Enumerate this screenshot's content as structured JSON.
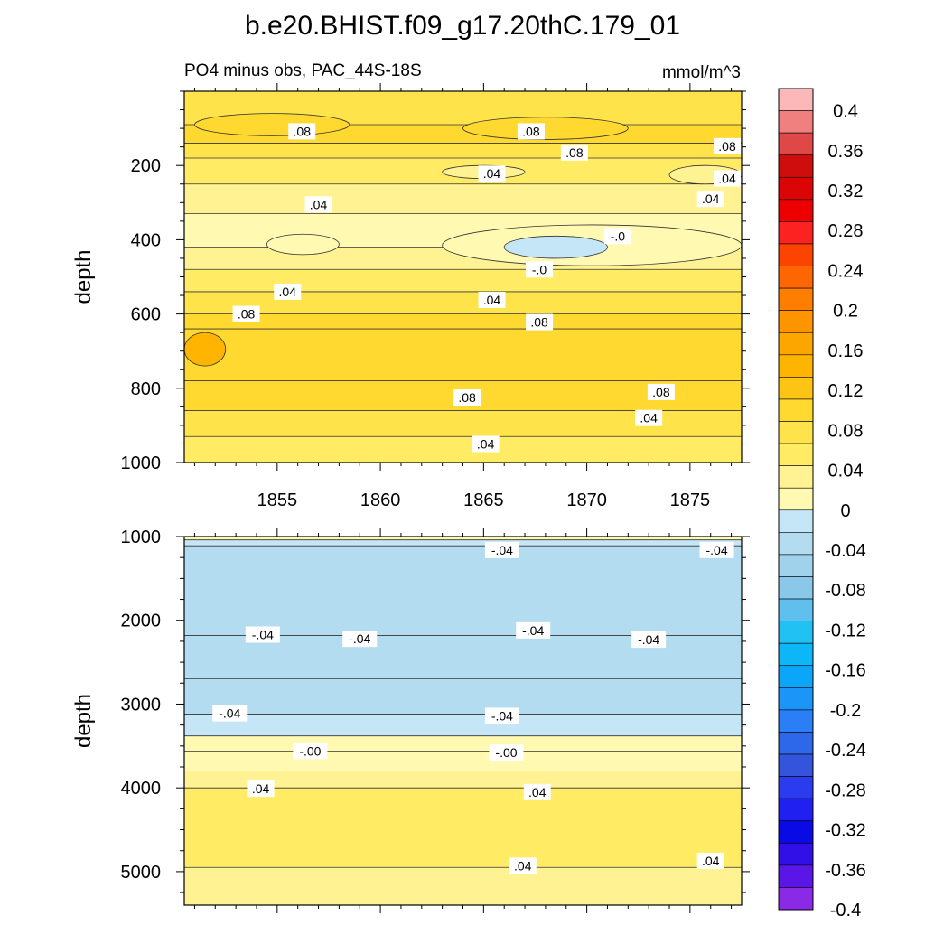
{
  "title": "b.e20.BHIST.f09_g17.20thC.179_01",
  "subtitle_left": "PO4 minus obs, PAC_44S-18S",
  "units": "mmol/m^3",
  "chart_data": [
    {
      "type": "heatmap",
      "panel": "upper",
      "ylabel": "depth",
      "y_reversed": true,
      "xlim": [
        1850.5,
        1877.5
      ],
      "ylim": [
        0,
        1000
      ],
      "x_ticks": [
        "1855",
        "1860",
        "1865",
        "1870",
        "1875"
      ],
      "y_ticks": [
        "200",
        "400",
        "600",
        "800",
        "1000"
      ],
      "bands": [
        {
          "top": 0,
          "value": 0.06
        },
        {
          "top": 90,
          "value": 0.08
        },
        {
          "top": 140,
          "value": 0.06
        },
        {
          "top": 180,
          "value": 0.04
        },
        {
          "top": 250,
          "value": 0.02
        },
        {
          "top": 330,
          "value": 0.01
        },
        {
          "top": 420,
          "value": 0.02
        },
        {
          "top": 480,
          "value": 0.04
        },
        {
          "top": 540,
          "value": 0.06
        },
        {
          "top": 600,
          "value": 0.08
        },
        {
          "top": 640,
          "value": 0.1
        },
        {
          "top": 780,
          "value": 0.08
        },
        {
          "top": 860,
          "value": 0.06
        },
        {
          "top": 930,
          "value": 0.04
        }
      ],
      "patches": [
        {
          "x": [
            1851,
            1858.5
          ],
          "y": [
            60,
            120
          ],
          "value": 0.1
        },
        {
          "x": [
            1864,
            1872
          ],
          "y": [
            70,
            130
          ],
          "value": 0.1
        },
        {
          "x": [
            1863,
            1867
          ],
          "y": [
            200,
            235
          ],
          "value": 0.02
        },
        {
          "x": [
            1874,
            1877.5
          ],
          "y": [
            200,
            250
          ],
          "value": 0.02
        },
        {
          "x": [
            1854.5,
            1858
          ],
          "y": [
            385,
            440
          ],
          "value": -0.01
        },
        {
          "x": [
            1863,
            1877.5
          ],
          "y": [
            360,
            470
          ],
          "value": -0.01
        },
        {
          "x": [
            1866,
            1871
          ],
          "y": [
            390,
            450
          ],
          "value": -0.03
        },
        {
          "x": [
            1850.5,
            1852.5
          ],
          "y": [
            650,
            740
          ],
          "value": 0.13
        }
      ],
      "labels": [
        {
          "text": ".08",
          "x": 1856.2,
          "y": 108
        },
        {
          "text": ".08",
          "x": 1867.3,
          "y": 108
        },
        {
          "text": ".08",
          "x": 1869.4,
          "y": 165
        },
        {
          "text": ".08",
          "x": 1876.8,
          "y": 148
        },
        {
          "text": ".04",
          "x": 1865.4,
          "y": 222
        },
        {
          "text": ".04",
          "x": 1876.8,
          "y": 235
        },
        {
          "text": ".04",
          "x": 1857.0,
          "y": 305
        },
        {
          "text": ".04",
          "x": 1876.0,
          "y": 290
        },
        {
          "text": "-.0",
          "x": 1871.5,
          "y": 390
        },
        {
          "text": "-.0",
          "x": 1867.7,
          "y": 480
        },
        {
          "text": ".04",
          "x": 1855.5,
          "y": 540
        },
        {
          "text": ".04",
          "x": 1865.4,
          "y": 562
        },
        {
          "text": ".08",
          "x": 1853.5,
          "y": 600
        },
        {
          "text": ".08",
          "x": 1867.7,
          "y": 622
        },
        {
          "text": ".08",
          "x": 1864.2,
          "y": 825
        },
        {
          "text": ".08",
          "x": 1873.6,
          "y": 810
        },
        {
          "text": ".04",
          "x": 1873.0,
          "y": 880
        },
        {
          "text": ".04",
          "x": 1865.1,
          "y": 950
        }
      ]
    },
    {
      "type": "heatmap",
      "panel": "lower",
      "ylabel": "depth",
      "y_reversed": true,
      "xlim": [
        1850.5,
        1877.5
      ],
      "ylim": [
        1000,
        5400
      ],
      "y_ticks": [
        "1000",
        "2000",
        "3000",
        "4000",
        "5000"
      ],
      "bands": [
        {
          "top": 1000,
          "value": 0.01
        },
        {
          "top": 1040,
          "value": -0.03
        },
        {
          "top": 1110,
          "value": -0.05
        },
        {
          "top": 2180,
          "value": -0.05
        },
        {
          "top": 2700,
          "value": -0.05
        },
        {
          "top": 3120,
          "value": -0.03
        },
        {
          "top": 3380,
          "value": -0.01
        },
        {
          "top": 3560,
          "value": 0.01
        },
        {
          "top": 3800,
          "value": 0.03
        },
        {
          "top": 4000,
          "value": 0.05
        },
        {
          "top": 4950,
          "value": 0.03
        }
      ],
      "patches": [],
      "labels": [
        {
          "text": "-.04",
          "x": 1865.9,
          "y": 1160
        },
        {
          "text": "-.04",
          "x": 1876.3,
          "y": 1160
        },
        {
          "text": "-.04",
          "x": 1854.3,
          "y": 2170
        },
        {
          "text": "-.04",
          "x": 1859.0,
          "y": 2220
        },
        {
          "text": "-.04",
          "x": 1867.4,
          "y": 2120
        },
        {
          "text": "-.04",
          "x": 1873.0,
          "y": 2230
        },
        {
          "text": "-.04",
          "x": 1852.7,
          "y": 3110
        },
        {
          "text": "-.04",
          "x": 1865.9,
          "y": 3140
        },
        {
          "text": "-.00",
          "x": 1856.6,
          "y": 3560
        },
        {
          "text": "-.00",
          "x": 1866.1,
          "y": 3580
        },
        {
          "text": ".04",
          "x": 1854.2,
          "y": 4010
        },
        {
          "text": ".04",
          "x": 1867.6,
          "y": 4050
        },
        {
          "text": ".04",
          "x": 1866.9,
          "y": 4930
        },
        {
          "text": ".04",
          "x": 1876.0,
          "y": 4870
        }
      ]
    }
  ],
  "colorbar": {
    "tick_labels": [
      "0.4",
      "0.36",
      "0.32",
      "0.28",
      "0.24",
      "0.2",
      "0.16",
      "0.12",
      "0.08",
      "0.04",
      "0",
      "-0.04",
      "-0.08",
      "-0.12",
      "-0.16",
      "-0.2",
      "-0.24",
      "-0.28",
      "-0.32",
      "-0.36",
      "-0.4"
    ],
    "colors": [
      "#fcb8b8",
      "#f07f80",
      "#e04848",
      "#d00d0d",
      "#dc0505",
      "#ec0000",
      "#fc2222",
      "#fc4400",
      "#fd6600",
      "#fe7f00",
      "#fe9400",
      "#fea600",
      "#feb400",
      "#fec414",
      "#ffd830",
      "#ffe34b",
      "#ffec64",
      "#fef293",
      "#fff9b2",
      "#c5e6f6",
      "#b4dcf1",
      "#a0d2ec",
      "#89c8e9",
      "#5fc0ef",
      "#22c1f4",
      "#0cb6f7",
      "#0ca6f8",
      "#1b95f8",
      "#2a7ef6",
      "#2e68ea",
      "#3454dc",
      "#2a3cee",
      "#2020f0",
      "#0a0ae6",
      "#3010e6",
      "#5a16e6",
      "#8a2ae6"
    ]
  }
}
